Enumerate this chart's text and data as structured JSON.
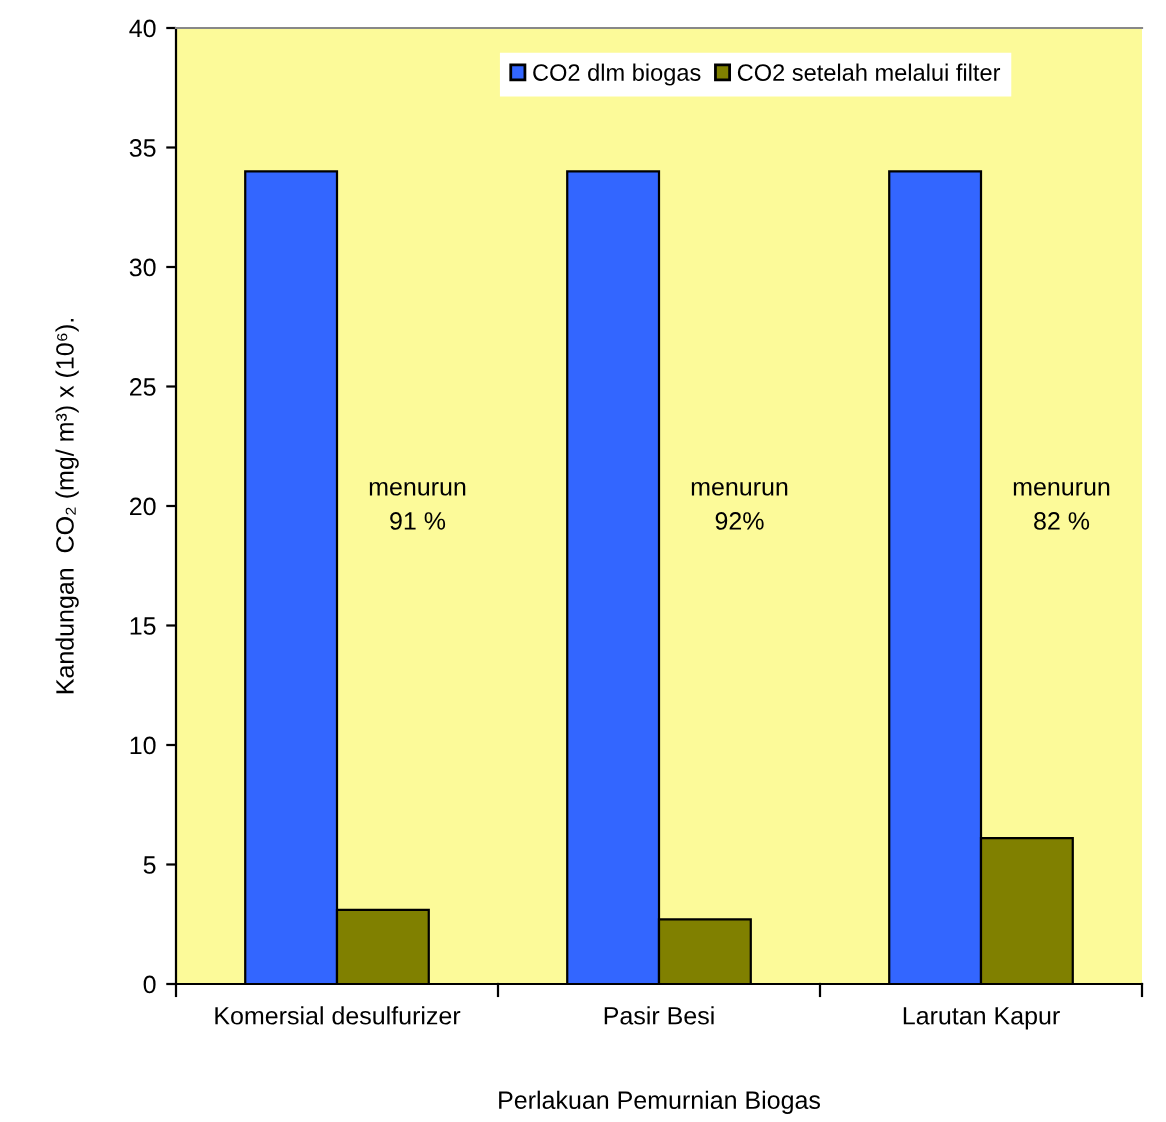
{
  "chart_data": {
    "type": "bar",
    "xlabel": "Perlakuan Pemurnian Biogas",
    "ylabel": "Kandungan  CO₂ (mg/ m³) x (10⁶).",
    "categories": [
      "Komersial desulfurizer",
      "Pasir Besi",
      "Larutan Kapur"
    ],
    "series": [
      {
        "name": "CO2 dlm biogas",
        "color": "#3366ff",
        "values": [
          34,
          34,
          34
        ]
      },
      {
        "name": "CO2 setelah melalui filter",
        "color": "#808000",
        "values": [
          3.1,
          2.7,
          6.1
        ]
      }
    ],
    "ylim": [
      0,
      40
    ],
    "yticks": [
      0,
      5,
      10,
      15,
      20,
      25,
      30,
      35,
      40
    ],
    "grid": false,
    "legend": "top",
    "annotations": [
      "menurun\n91 %",
      "menurun\n92%",
      "menurun\n82 %"
    ]
  }
}
